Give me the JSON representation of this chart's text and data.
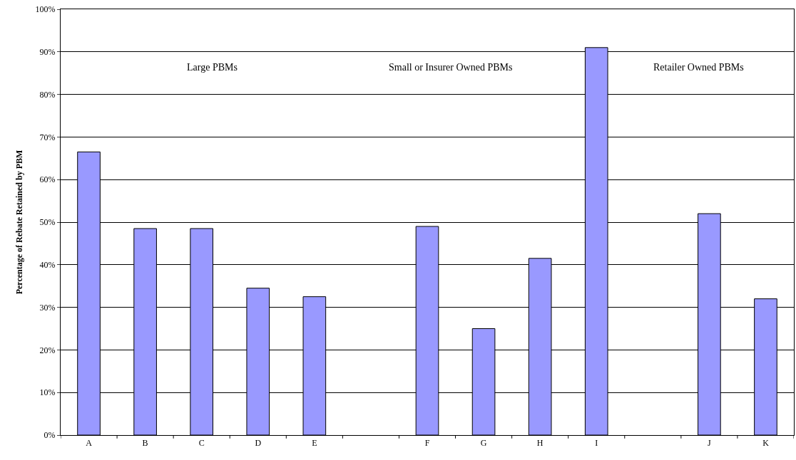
{
  "chart_data": {
    "type": "bar",
    "ylabel": "Percentage of Rebate Retained by PBM",
    "categories": [
      "A",
      "B",
      "C",
      "D",
      "E",
      null,
      "F",
      "G",
      "H",
      "I",
      null,
      "J",
      "K"
    ],
    "values": [
      66.5,
      48.5,
      48.5,
      34.5,
      32.5,
      null,
      49,
      25,
      41.5,
      91,
      null,
      52,
      32
    ],
    "color": "#9999ff",
    "ylim": [
      0,
      100
    ],
    "yticks": [
      {
        "value": 0,
        "label": "0%"
      },
      {
        "value": 10,
        "label": "10%"
      },
      {
        "value": 20,
        "label": "20%"
      },
      {
        "value": 30,
        "label": "30%"
      },
      {
        "value": 40,
        "label": "40%"
      },
      {
        "value": 50,
        "label": "50%"
      },
      {
        "value": 60,
        "label": "60%"
      },
      {
        "value": 70,
        "label": "70%"
      },
      {
        "value": 80,
        "label": "80%"
      },
      {
        "value": 90,
        "label": "90%"
      },
      {
        "value": 100,
        "label": "100%"
      }
    ],
    "grid": "y",
    "legend": false,
    "annotations": [
      "Large PBMs",
      "Small or Insurer Owned PBMs",
      "Retailer Owned PBMs"
    ]
  }
}
